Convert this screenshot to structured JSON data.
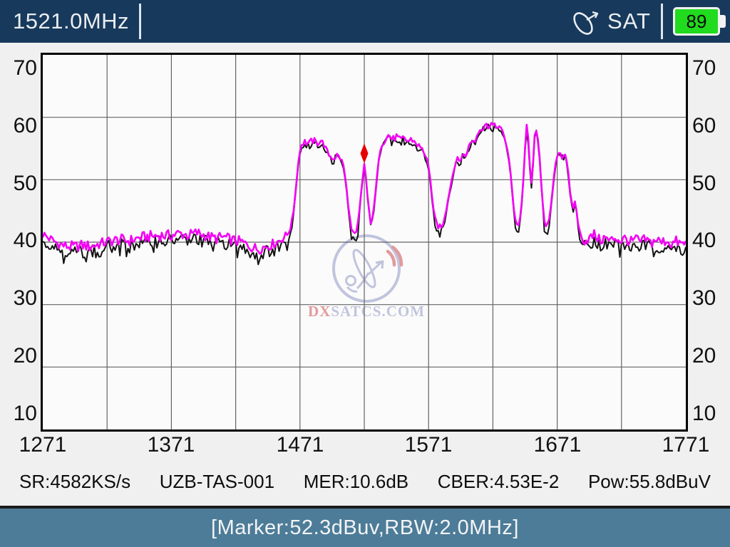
{
  "header": {
    "frequency_label": "1521.0MHz",
    "mode_label": "SAT",
    "battery": {
      "percent": "89"
    }
  },
  "chart": {
    "y_ticks": [
      "70",
      "60",
      "50",
      "40",
      "30",
      "20",
      "10"
    ],
    "x_ticks": [
      "1271",
      "1371",
      "1471",
      "1571",
      "1671",
      "1771"
    ]
  },
  "watermark": {
    "prefix": "DX",
    "suffix": "SATCS.COM"
  },
  "status_bar": {
    "items": [
      "SR:4582KS/s",
      "UZB-TAS-001",
      "MER:10.6dB",
      "CBER:4.53E-2",
      "Pow:55.8dBuV"
    ]
  },
  "footer": {
    "marker_readout": "[Marker:52.3dBuv,RBW:2.0MHz]"
  },
  "colors": {
    "header_bg": "#17395b",
    "footer_bg": "#4d7c98",
    "screen_bg": "#f0f0f0",
    "plot_bg": "#fbfbfb",
    "grid_line": "#646464",
    "trace_live": "#f400f4",
    "trace_ref": "#141414",
    "marker": "#e60000",
    "battery_fill": "#21dc1e",
    "text_light": "#e9edf2",
    "watermark_blue": "#b2b7d6",
    "watermark_red": "#dd8286"
  },
  "chart_data": {
    "type": "line",
    "title": "",
    "x_range": [
      1271,
      1771
    ],
    "y_range": [
      10,
      70
    ],
    "x_tick_values": [
      1271,
      1371,
      1471,
      1571,
      1671,
      1771
    ],
    "x_grid_step_mhz": 50,
    "y_grid_step_db": 10,
    "grid": true,
    "marker": {
      "freq_mhz": 1521,
      "level_dbuv": 52.3
    },
    "series": [
      {
        "name": "live-spectrum-trace",
        "color": "#f400f4",
        "unit": "dBuV",
        "anchors": [
          [
            1271,
            41.3
          ],
          [
            1276,
            40.6
          ],
          [
            1282,
            39.9
          ],
          [
            1288,
            39.4
          ],
          [
            1295,
            39.2
          ],
          [
            1302,
            39.5
          ],
          [
            1308,
            39.3
          ],
          [
            1315,
            39.7
          ],
          [
            1322,
            40.1
          ],
          [
            1330,
            40.4
          ],
          [
            1338,
            40.2
          ],
          [
            1346,
            40.7
          ],
          [
            1354,
            40.9
          ],
          [
            1362,
            41.1
          ],
          [
            1370,
            41.0
          ],
          [
            1377,
            41.4
          ],
          [
            1384,
            41.1
          ],
          [
            1391,
            41.5
          ],
          [
            1398,
            41.0
          ],
          [
            1405,
            40.6
          ],
          [
            1412,
            40.8
          ],
          [
            1419,
            40.3
          ],
          [
            1426,
            40.0
          ],
          [
            1433,
            39.2
          ],
          [
            1438,
            38.9
          ],
          [
            1444,
            39.3
          ],
          [
            1450,
            39.7
          ],
          [
            1456,
            40.4
          ],
          [
            1461,
            41.2
          ],
          [
            1464,
            42.5
          ],
          [
            1466,
            45.0
          ],
          [
            1468,
            49.0
          ],
          [
            1470,
            53.5
          ],
          [
            1472,
            55.6
          ],
          [
            1475,
            56.1
          ],
          [
            1478,
            55.7
          ],
          [
            1481,
            56.3
          ],
          [
            1484,
            55.8
          ],
          [
            1487,
            56.4
          ],
          [
            1490,
            55.5
          ],
          [
            1492,
            54.6
          ],
          [
            1494,
            53.8
          ],
          [
            1497,
            53.5
          ],
          [
            1500,
            53.9
          ],
          [
            1503,
            53.3
          ],
          [
            1505,
            52.2
          ],
          [
            1507,
            49.0
          ],
          [
            1509,
            45.0
          ],
          [
            1511,
            42.0
          ],
          [
            1513,
            40.8
          ],
          [
            1515,
            41.5
          ],
          [
            1517,
            44.5
          ],
          [
            1519,
            49.0
          ],
          [
            1521,
            52.4
          ],
          [
            1522,
            51.0
          ],
          [
            1524,
            46.0
          ],
          [
            1526,
            43.4
          ],
          [
            1528,
            44.5
          ],
          [
            1530,
            48.5
          ],
          [
            1532,
            53.0
          ],
          [
            1534,
            55.5
          ],
          [
            1537,
            56.2
          ],
          [
            1540,
            57.2
          ],
          [
            1543,
            56.4
          ],
          [
            1546,
            56.9
          ],
          [
            1549,
            56.2
          ],
          [
            1552,
            56.7
          ],
          [
            1555,
            56.1
          ],
          [
            1558,
            56.5
          ],
          [
            1561,
            55.9
          ],
          [
            1564,
            55.3
          ],
          [
            1567,
            54.6
          ],
          [
            1570,
            53.2
          ],
          [
            1572,
            50.5
          ],
          [
            1574,
            46.5
          ],
          [
            1576,
            43.8
          ],
          [
            1579,
            42.3
          ],
          [
            1582,
            42.9
          ],
          [
            1585,
            45.5
          ],
          [
            1588,
            49.0
          ],
          [
            1591,
            52.0
          ],
          [
            1593,
            53.4
          ],
          [
            1595,
            52.9
          ],
          [
            1597,
            54.0
          ],
          [
            1600,
            53.8
          ],
          [
            1602,
            55.2
          ],
          [
            1605,
            56.4
          ],
          [
            1607,
            56.0
          ],
          [
            1609,
            57.4
          ],
          [
            1611,
            58.3
          ],
          [
            1613,
            58.0
          ],
          [
            1615,
            58.9
          ],
          [
            1617,
            58.5
          ],
          [
            1619,
            59.2
          ],
          [
            1621,
            58.7
          ],
          [
            1623,
            58.3
          ],
          [
            1625,
            58.8
          ],
          [
            1627,
            58.2
          ],
          [
            1629,
            57.4
          ],
          [
            1631,
            56.0
          ],
          [
            1633,
            54.2
          ],
          [
            1635,
            50.5
          ],
          [
            1637,
            45.8
          ],
          [
            1639,
            43.1
          ],
          [
            1641,
            42.7
          ],
          [
            1643,
            45.0
          ],
          [
            1645,
            51.0
          ],
          [
            1646,
            55.0
          ],
          [
            1647,
            58.6
          ],
          [
            1648,
            58.0
          ],
          [
            1649,
            55.0
          ],
          [
            1650,
            51.0
          ],
          [
            1651,
            49.6
          ],
          [
            1652,
            51.5
          ],
          [
            1653,
            55.5
          ],
          [
            1654,
            58.6
          ],
          [
            1655,
            58.1
          ],
          [
            1657,
            54.5
          ],
          [
            1659,
            48.0
          ],
          [
            1661,
            43.6
          ],
          [
            1663,
            42.5
          ],
          [
            1665,
            43.5
          ],
          [
            1667,
            47.5
          ],
          [
            1669,
            51.5
          ],
          [
            1671,
            53.9
          ],
          [
            1673,
            54.5
          ],
          [
            1675,
            53.7
          ],
          [
            1677,
            54.3
          ],
          [
            1679,
            52.5
          ],
          [
            1681,
            48.0
          ],
          [
            1683,
            45.2
          ],
          [
            1685,
            46.6
          ],
          [
            1687,
            43.5
          ],
          [
            1689,
            41.0
          ],
          [
            1692,
            40.2
          ],
          [
            1696,
            40.6
          ],
          [
            1700,
            41.2
          ],
          [
            1704,
            40.3
          ],
          [
            1708,
            40.7
          ],
          [
            1712,
            40.1
          ],
          [
            1716,
            40.8
          ],
          [
            1720,
            40.2
          ],
          [
            1724,
            40.6
          ],
          [
            1728,
            39.9
          ],
          [
            1732,
            40.5
          ],
          [
            1736,
            40.0
          ],
          [
            1740,
            40.4
          ],
          [
            1744,
            39.8
          ],
          [
            1748,
            40.5
          ],
          [
            1752,
            39.9
          ],
          [
            1756,
            40.3
          ],
          [
            1760,
            39.7
          ],
          [
            1764,
            40.1
          ],
          [
            1768,
            39.6
          ],
          [
            1771,
            39.8
          ]
        ]
      },
      {
        "name": "reference-spectrum-trace",
        "color": "#141414",
        "unit": "dBuV",
        "derived_from": "live-spectrum-trace",
        "offset_db": {
          "baseline": 0.85,
          "plateau": 0.4
        }
      }
    ]
  }
}
